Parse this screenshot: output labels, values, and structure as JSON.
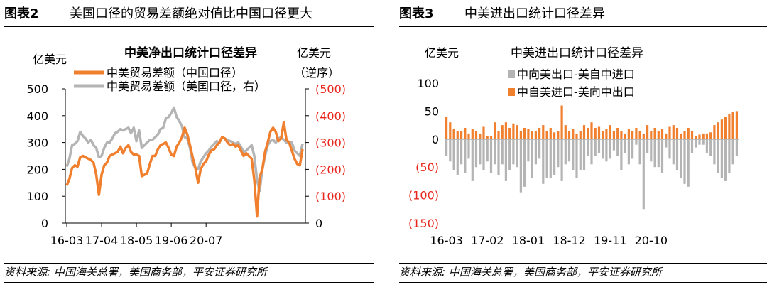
{
  "figures": [
    {
      "label": "图表2",
      "title": "美国口径的贸易差额绝对值比中国口径更大",
      "source": "资料来源: 中国海关总署，美国商务部，平安证券研究所"
    },
    {
      "label": "图表3",
      "title": "中美进出口统计口径差异",
      "source": "资料来源: 中国海关总署，美国商务部，平安证券研究所"
    }
  ],
  "colors": {
    "orange": "#F07F2E",
    "gray": "#B4B4B4",
    "red": "#E8261C"
  },
  "chart_data": [
    {
      "type": "line",
      "title": "中美净出口统计口径差异",
      "ylabel": "亿美元",
      "y2label": "亿美元",
      "y2note": "（逆序）",
      "ylim": [
        0,
        500
      ],
      "y2lim": [
        -500,
        0
      ],
      "yticks": [
        "500",
        "400",
        "300",
        "200",
        "100",
        "0"
      ],
      "y2ticks": [
        "(500)",
        "(400)",
        "(300)",
        "(200)",
        "(100)",
        "0"
      ],
      "xticks": [
        "16-03",
        "17-04",
        "18-05",
        "19-06",
        "20-07"
      ],
      "series": [
        {
          "name": "中美贸易差额（中国口径）",
          "axis": "left",
          "values": [
            140,
            165,
            205,
            215,
            210,
            245,
            250,
            245,
            240,
            235,
            225,
            180,
            105,
            180,
            215,
            225,
            250,
            255,
            260,
            265,
            285,
            260,
            280,
            290,
            265,
            255,
            255,
            250,
            175,
            180,
            185,
            220,
            250,
            250,
            275,
            290,
            295,
            300,
            280,
            255,
            250,
            285,
            300,
            320,
            355,
            330,
            290,
            245,
            205,
            150,
            200,
            220,
            230,
            255,
            270,
            275,
            290,
            300,
            320,
            315,
            300,
            290,
            295,
            285,
            290,
            270,
            250,
            260,
            250,
            240,
            160,
            25,
            170,
            200,
            265,
            300,
            340,
            355,
            340,
            305,
            315,
            375,
            310,
            300,
            270,
            240,
            220,
            215,
            275
          ]
        },
        {
          "name": "中美贸易差额（美国口径，右）",
          "axis": "right",
          "values": [
            -210,
            -240,
            -290,
            -295,
            -305,
            -340,
            -325,
            -315,
            -300,
            -310,
            -290,
            -280,
            -245,
            -250,
            -280,
            -300,
            -300,
            -315,
            -335,
            -340,
            -350,
            -345,
            -350,
            -355,
            -335,
            -355,
            -305,
            -345,
            -280,
            -290,
            -300,
            -310,
            -310,
            -320,
            -330,
            -350,
            -355,
            -390,
            -395,
            -410,
            -430,
            -395,
            -380,
            -360,
            -320,
            -315,
            -280,
            -225,
            -205,
            -200,
            -230,
            -245,
            -260,
            -270,
            -285,
            -295,
            -305,
            -300,
            -320,
            -315,
            -310,
            -305,
            -300,
            -295,
            -300,
            -285,
            -265,
            -270,
            -280,
            -290,
            -250,
            -160,
            -120,
            -200,
            -250,
            -290,
            -305,
            -310,
            -300,
            -315,
            -320,
            -310,
            -300,
            -300,
            -300,
            -270,
            -260,
            -250,
            -295
          ]
        }
      ]
    },
    {
      "type": "bar",
      "title": "中美进出口统计口径差异",
      "ylabel": "亿美元",
      "ylim": [
        -150,
        100
      ],
      "yticks": [
        "100",
        "50",
        "0",
        "(50)",
        "(100)",
        "(150)"
      ],
      "xticks": [
        "16-03",
        "17-02",
        "18-01",
        "18-12",
        "19-11",
        "20-10"
      ],
      "series": [
        {
          "name": "中向美出口-美自中进口",
          "values": [
            -30,
            -40,
            -55,
            -65,
            -45,
            -60,
            -35,
            -75,
            -50,
            -45,
            -55,
            -40,
            -60,
            -45,
            -65,
            -45,
            -75,
            -55,
            -45,
            -50,
            -95,
            -85,
            -40,
            -70,
            -45,
            -35,
            -80,
            -70,
            -70,
            -65,
            -50,
            -75,
            -45,
            -40,
            -55,
            -70,
            -55,
            -55,
            -30,
            -45,
            -30,
            -25,
            -35,
            -40,
            -35,
            -20,
            -30,
            -55,
            -25,
            -45,
            -35,
            -10,
            -45,
            -125,
            -25,
            -40,
            -50,
            -50,
            -60,
            -15,
            -35,
            -45,
            -55,
            -70,
            -80,
            -85,
            -25,
            -15,
            -10,
            -10,
            -25,
            -30,
            -45,
            -60,
            -70,
            -75,
            -60,
            -45,
            -30
          ]
        },
        {
          "name": "中自美进口-美向中出口",
          "values": [
            40,
            30,
            18,
            15,
            15,
            20,
            10,
            18,
            15,
            10,
            22,
            5,
            5,
            30,
            15,
            25,
            30,
            20,
            28,
            25,
            15,
            20,
            18,
            15,
            15,
            20,
            25,
            15,
            20,
            12,
            15,
            60,
            25,
            15,
            18,
            10,
            15,
            25,
            20,
            30,
            20,
            22,
            15,
            18,
            25,
            15,
            20,
            15,
            10,
            18,
            15,
            20,
            15,
            10,
            25,
            15,
            20,
            15,
            18,
            10,
            22,
            25,
            20,
            10,
            15,
            20,
            15,
            5,
            8,
            10,
            10,
            12,
            25,
            30,
            35,
            40,
            45,
            48,
            50
          ]
        }
      ]
    }
  ]
}
